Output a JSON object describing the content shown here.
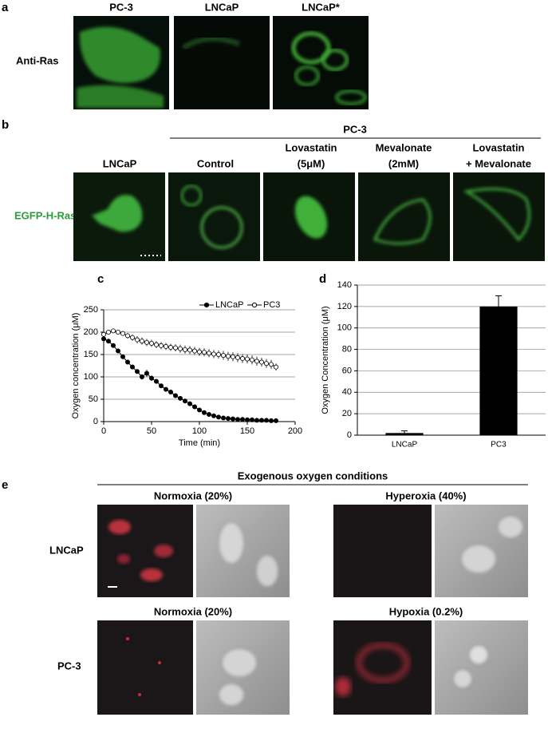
{
  "panel_a": {
    "letter": "a",
    "columns": [
      "PC-3",
      "LNCaP",
      "LNCaP*"
    ],
    "row_label": "Anti-Ras"
  },
  "panel_b": {
    "letter": "b",
    "group": "PC-3",
    "columns": [
      [
        "LNCaP"
      ],
      [
        "Control"
      ],
      [
        "Lovastatin",
        "(5μM)"
      ],
      [
        "Mevalonate",
        "(2mM)"
      ],
      [
        "Lovastatin",
        "+ Mevalonate"
      ]
    ],
    "row_label": "EGFP-H-Ras"
  },
  "panel_e": {
    "letter": "e",
    "title": "Exogenous oxygen conditions",
    "conditions": [
      "Normoxia (20%)",
      "Hyperoxia (40%)",
      "Normoxia (20%)",
      "Hypoxia (0.2%)"
    ],
    "rows": [
      "LNCaP",
      "PC-3"
    ]
  },
  "chart_data": [
    {
      "type": "line",
      "label": "c",
      "x_label": "Time (min)",
      "y_label": "Oxygen concentration (μM)",
      "x": [
        0,
        5,
        10,
        15,
        20,
        25,
        30,
        35,
        40,
        45,
        50,
        55,
        60,
        65,
        70,
        75,
        80,
        85,
        90,
        95,
        100,
        105,
        110,
        115,
        120,
        125,
        130,
        135,
        140,
        145,
        150,
        155,
        160,
        165,
        170,
        175,
        180
      ],
      "series": [
        {
          "name": "LNCaP",
          "color": "#000000",
          "marker": "filled",
          "values": [
            185,
            180,
            170,
            158,
            145,
            133,
            122,
            112,
            100,
            108,
            97,
            90,
            80,
            72,
            66,
            58,
            52,
            46,
            40,
            33,
            26,
            20,
            16,
            13,
            10,
            8,
            7,
            6,
            5,
            5,
            4,
            4,
            3,
            3,
            3,
            2,
            2
          ],
          "errors": [
            3,
            3,
            4,
            4,
            4,
            5,
            5,
            5,
            6,
            8,
            6,
            5,
            5,
            5,
            5,
            4,
            4,
            4,
            4,
            4,
            3,
            3,
            3,
            3,
            2,
            2,
            2,
            2,
            2,
            2,
            2,
            2,
            2,
            2,
            2,
            2,
            2
          ]
        },
        {
          "name": "PC3",
          "color": "#000000",
          "marker": "open",
          "values": [
            195,
            200,
            203,
            200,
            197,
            192,
            188,
            183,
            180,
            177,
            175,
            172,
            170,
            168,
            166,
            165,
            163,
            161,
            160,
            158,
            156,
            155,
            153,
            151,
            150,
            148,
            146,
            145,
            143,
            141,
            140,
            138,
            135,
            133,
            130,
            128,
            122
          ],
          "errors": [
            3,
            3,
            3,
            4,
            5,
            6,
            7,
            8,
            8,
            8,
            8,
            8,
            8,
            8,
            8,
            8,
            9,
            9,
            9,
            9,
            9,
            9,
            9,
            9,
            9,
            10,
            10,
            10,
            10,
            10,
            10,
            10,
            10,
            10,
            10,
            10,
            8
          ]
        }
      ],
      "xlim": [
        0,
        200
      ],
      "xticks": [
        0,
        50,
        100,
        150,
        200
      ],
      "ylim": [
        0,
        250
      ],
      "yticks": [
        0,
        50,
        100,
        150,
        200,
        250
      ],
      "grid": true,
      "legend": "top-right"
    },
    {
      "type": "bar",
      "label": "d",
      "y_label": "Oxygen Concentration (μM)",
      "categories": [
        "LNCaP",
        "PC3"
      ],
      "values": [
        2,
        120
      ],
      "errors": [
        2,
        10
      ],
      "color": "#000000",
      "ylim": [
        0,
        140
      ],
      "yticks": [
        0,
        20,
        40,
        60,
        80,
        100,
        120,
        140
      ],
      "grid": true
    }
  ]
}
